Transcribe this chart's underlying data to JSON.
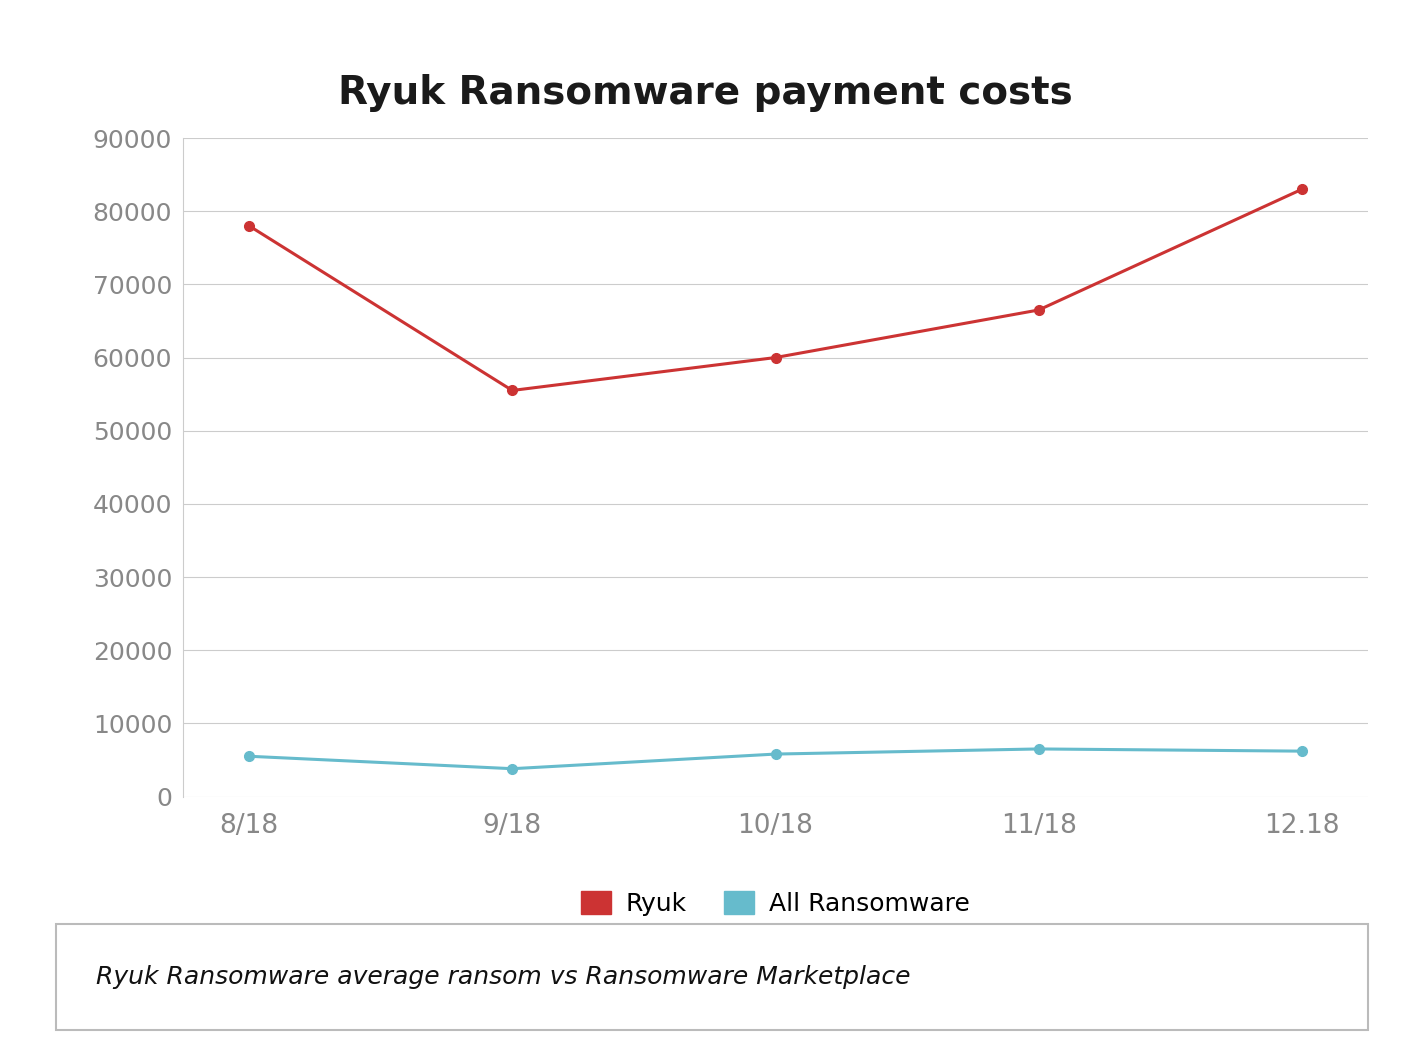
{
  "title": "Ryuk Ransomware payment costs",
  "x_labels": [
    "8/18",
    "9/18",
    "10/18",
    "11/18",
    "12.18"
  ],
  "x_values": [
    0,
    1,
    2,
    3,
    4
  ],
  "ryuk_values": [
    78000,
    55500,
    60000,
    66500,
    83000
  ],
  "all_ransomware_values": [
    5500,
    3800,
    5800,
    6500,
    6200
  ],
  "ryuk_color": "#cc3333",
  "all_ransomware_color": "#66bbcc",
  "ylim_min": 0,
  "ylim_max": 90000,
  "yticks": [
    0,
    10000,
    20000,
    30000,
    40000,
    50000,
    60000,
    70000,
    80000,
    90000
  ],
  "legend_ryuk": "Ryuk",
  "legend_all": "All Ransomware",
  "subtitle_text": "Ryuk Ransomware average ransom vs Ransomware Marketplace",
  "bg_color": "#ffffff",
  "grid_color": "#cccccc",
  "tick_label_color": "#888888",
  "title_fontsize": 28,
  "tick_fontsize": 18,
  "legend_fontsize": 18,
  "subtitle_fontsize": 18,
  "line_width": 2.2,
  "marker_size": 7
}
